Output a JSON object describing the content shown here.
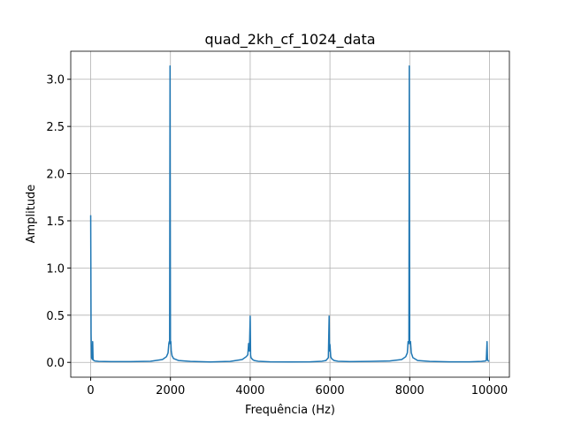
{
  "chart_data": {
    "type": "line",
    "title": "quad_2kh_cf_1024_data",
    "x_label": "Frequência (Hz)",
    "y_label": "Amplitude",
    "x": [
      0,
      10,
      20,
      40,
      50,
      60,
      80,
      100,
      200,
      500,
      1000,
      1500,
      1800,
      1900,
      1940,
      1960,
      1970,
      1980,
      1990,
      2000,
      2010,
      2020,
      2040,
      2080,
      2200,
      2500,
      3000,
      3500,
      3800,
      3900,
      3940,
      3960,
      3980,
      4000,
      4010,
      4020,
      4060,
      4100,
      4200,
      4500,
      5000,
      5500,
      5800,
      5900,
      5960,
      5980,
      5990,
      6000,
      6020,
      6040,
      6100,
      6200,
      6500,
      7000,
      7500,
      7800,
      7900,
      7940,
      7960,
      7980,
      7990,
      8000,
      8020,
      8040,
      8080,
      8200,
      8500,
      9000,
      9500,
      9800,
      9900,
      9920,
      9940,
      9950,
      9960,
      9990
    ],
    "series": [
      {
        "name": "amplitude",
        "color": "#1f77b4",
        "values": [
          1.56,
          0.3,
          0.05,
          0.03,
          0.22,
          0.03,
          0.02,
          0.015,
          0.01,
          0.008,
          0.008,
          0.012,
          0.03,
          0.06,
          0.1,
          0.2,
          0.22,
          0.2,
          3.14,
          0.2,
          0.22,
          0.12,
          0.07,
          0.04,
          0.02,
          0.01,
          0.005,
          0.01,
          0.03,
          0.06,
          0.08,
          0.2,
          0.12,
          0.49,
          0.08,
          0.05,
          0.03,
          0.02,
          0.012,
          0.006,
          0.004,
          0.006,
          0.012,
          0.02,
          0.05,
          0.49,
          0.12,
          0.19,
          0.06,
          0.04,
          0.02,
          0.012,
          0.008,
          0.01,
          0.015,
          0.03,
          0.06,
          0.1,
          0.22,
          0.2,
          3.14,
          0.2,
          0.22,
          0.1,
          0.05,
          0.02,
          0.01,
          0.006,
          0.006,
          0.01,
          0.015,
          0.02,
          0.22,
          0.04,
          0.02,
          0.01
        ]
      }
    ],
    "xlim": [
      -500,
      10500
    ],
    "ylim": [
      -0.157,
      3.297
    ],
    "xticks": [
      0,
      2000,
      4000,
      6000,
      8000,
      10000
    ],
    "yticks": [
      {
        "value": 0,
        "label": "0.0"
      },
      0.5,
      {
        "value": 1,
        "label": "1.0"
      },
      1.5,
      {
        "value": 2,
        "label": "2.0"
      },
      2.5,
      {
        "value": 3,
        "label": "3.0"
      }
    ],
    "grid": true
  }
}
